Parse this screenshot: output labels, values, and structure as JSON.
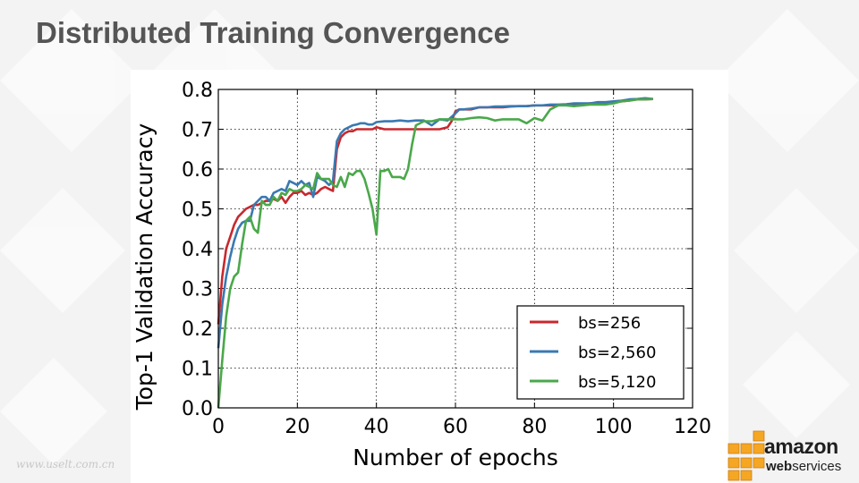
{
  "slide": {
    "title": "Distributed Training Convergence",
    "watermark": "www.uselt.com.cn"
  },
  "logo": {
    "word": "amazon",
    "sub_bold": "web",
    "sub_rest": "services"
  },
  "colors": {
    "bs256": "#c8282d",
    "bs2560": "#3a79b2",
    "bs5120": "#4aa84a",
    "logo_orange": "#f5a623"
  },
  "chart_data": {
    "type": "line",
    "title": "",
    "xlabel": "Number of epochs",
    "ylabel": "Top-1 Validation Accuracy",
    "xlim": [
      0,
      120
    ],
    "ylim": [
      0.0,
      0.8
    ],
    "xticks": [
      "0",
      "20",
      "40",
      "60",
      "80",
      "100",
      "120"
    ],
    "yticks": [
      "0.0",
      "0.1",
      "0.2",
      "0.3",
      "0.4",
      "0.5",
      "0.6",
      "0.7",
      "0.8"
    ],
    "grid": true,
    "legend_position": "bottom-right",
    "series": [
      {
        "name": "bs=256",
        "color": "#c8282d",
        "x": [
          0,
          1,
          2,
          3,
          4,
          5,
          6,
          7,
          8,
          9,
          10,
          11,
          12,
          13,
          14,
          15,
          16,
          17,
          18,
          19,
          20,
          21,
          22,
          23,
          24,
          25,
          26,
          27,
          28,
          29,
          30,
          31,
          32,
          33,
          34,
          35,
          36,
          37,
          38,
          39,
          40,
          42,
          44,
          46,
          48,
          50,
          52,
          54,
          56,
          58,
          59,
          60,
          61,
          62,
          64,
          66,
          68,
          70,
          72,
          74,
          76,
          78,
          80,
          82,
          84,
          86,
          88,
          90,
          92,
          94,
          96,
          98,
          100,
          102,
          104,
          106,
          108,
          110
        ],
        "y": [
          0.21,
          0.33,
          0.4,
          0.43,
          0.46,
          0.48,
          0.49,
          0.5,
          0.505,
          0.51,
          0.51,
          0.515,
          0.52,
          0.52,
          0.525,
          0.52,
          0.53,
          0.515,
          0.53,
          0.54,
          0.54,
          0.545,
          0.535,
          0.54,
          0.535,
          0.54,
          0.55,
          0.555,
          0.55,
          0.545,
          0.65,
          0.68,
          0.69,
          0.695,
          0.695,
          0.7,
          0.7,
          0.7,
          0.7,
          0.7,
          0.705,
          0.7,
          0.7,
          0.7,
          0.7,
          0.7,
          0.7,
          0.7,
          0.7,
          0.705,
          0.72,
          0.745,
          0.75,
          0.75,
          0.75,
          0.755,
          0.755,
          0.755,
          0.755,
          0.757,
          0.758,
          0.758,
          0.76,
          0.76,
          0.76,
          0.76,
          0.762,
          0.763,
          0.763,
          0.765,
          0.765,
          0.765,
          0.767,
          0.77,
          0.772,
          0.775,
          0.775,
          0.776
        ]
      },
      {
        "name": "bs=2,560",
        "color": "#3a79b2",
        "x": [
          0,
          1,
          2,
          3,
          4,
          5,
          6,
          7,
          8,
          9,
          10,
          11,
          12,
          13,
          14,
          15,
          16,
          17,
          18,
          19,
          20,
          21,
          22,
          23,
          24,
          25,
          26,
          27,
          28,
          29,
          30,
          31,
          32,
          33,
          34,
          35,
          36,
          37,
          38,
          39,
          40,
          42,
          44,
          46,
          48,
          50,
          52,
          54,
          56,
          58,
          60,
          61,
          62,
          64,
          66,
          68,
          70,
          72,
          74,
          76,
          78,
          80,
          82,
          84,
          86,
          88,
          90,
          92,
          94,
          96,
          98,
          100,
          102,
          104,
          106,
          108,
          110
        ],
        "y": [
          0.15,
          0.26,
          0.33,
          0.38,
          0.42,
          0.45,
          0.465,
          0.47,
          0.47,
          0.51,
          0.52,
          0.53,
          0.53,
          0.52,
          0.54,
          0.545,
          0.55,
          0.545,
          0.57,
          0.565,
          0.56,
          0.57,
          0.56,
          0.565,
          0.53,
          0.58,
          0.575,
          0.57,
          0.56,
          0.57,
          0.67,
          0.69,
          0.7,
          0.705,
          0.71,
          0.712,
          0.715,
          0.715,
          0.712,
          0.712,
          0.718,
          0.72,
          0.72,
          0.722,
          0.72,
          0.722,
          0.722,
          0.71,
          0.725,
          0.722,
          0.74,
          0.75,
          0.75,
          0.752,
          0.755,
          0.755,
          0.757,
          0.757,
          0.758,
          0.758,
          0.758,
          0.76,
          0.76,
          0.762,
          0.762,
          0.763,
          0.765,
          0.765,
          0.765,
          0.768,
          0.768,
          0.77,
          0.772,
          0.775,
          0.776,
          0.778,
          0.776
        ]
      },
      {
        "name": "bs=5,120",
        "color": "#4aa84a",
        "x": [
          0,
          1,
          2,
          3,
          4,
          5,
          6,
          7,
          8,
          9,
          10,
          11,
          12,
          13,
          14,
          15,
          16,
          17,
          18,
          19,
          20,
          21,
          22,
          23,
          24,
          25,
          26,
          27,
          28,
          29,
          30,
          31,
          32,
          33,
          34,
          35,
          36,
          37,
          38,
          39,
          40,
          41,
          42,
          43,
          44,
          45,
          46,
          47,
          48,
          49,
          50,
          52,
          54,
          56,
          58,
          60,
          62,
          64,
          66,
          68,
          70,
          72,
          74,
          76,
          78,
          80,
          82,
          84,
          86,
          88,
          90,
          92,
          94,
          96,
          98,
          100,
          102,
          104,
          106,
          108,
          110
        ],
        "y": [
          0.0,
          0.12,
          0.23,
          0.3,
          0.33,
          0.34,
          0.41,
          0.47,
          0.48,
          0.45,
          0.44,
          0.52,
          0.51,
          0.51,
          0.53,
          0.52,
          0.54,
          0.535,
          0.55,
          0.545,
          0.545,
          0.55,
          0.56,
          0.555,
          0.55,
          0.59,
          0.575,
          0.575,
          0.575,
          0.56,
          0.555,
          0.58,
          0.555,
          0.59,
          0.585,
          0.595,
          0.595,
          0.575,
          0.54,
          0.5,
          0.435,
          0.595,
          0.595,
          0.6,
          0.58,
          0.58,
          0.58,
          0.575,
          0.6,
          0.66,
          0.71,
          0.72,
          0.72,
          0.725,
          0.725,
          0.725,
          0.725,
          0.728,
          0.73,
          0.728,
          0.722,
          0.725,
          0.725,
          0.725,
          0.715,
          0.728,
          0.722,
          0.75,
          0.76,
          0.76,
          0.758,
          0.76,
          0.762,
          0.762,
          0.762,
          0.765,
          0.77,
          0.772,
          0.775,
          0.775,
          0.776
        ]
      }
    ]
  }
}
